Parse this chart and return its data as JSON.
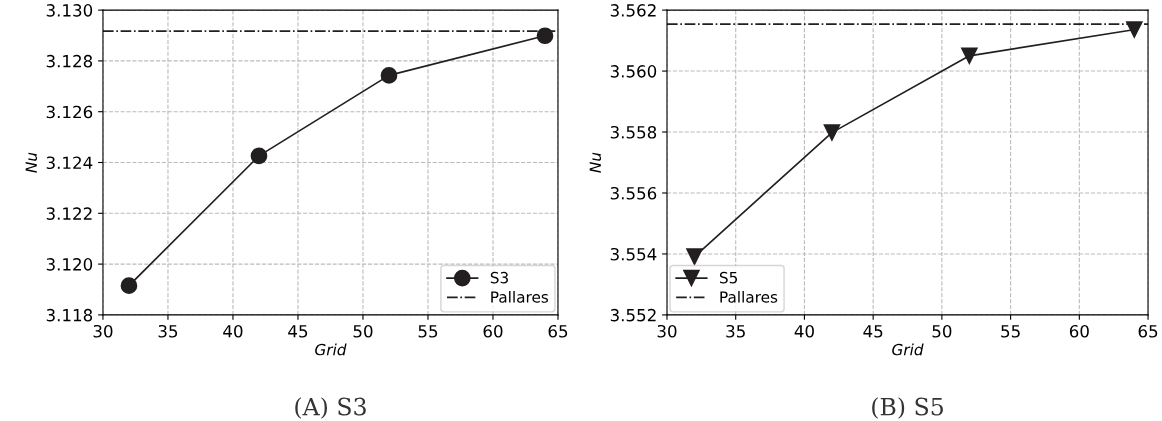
{
  "chart_data": [
    {
      "type": "line",
      "title": "(A) S3",
      "xlabel": "Grid",
      "ylabel": "Nu",
      "x": [
        32,
        42,
        52,
        64
      ],
      "series": [
        {
          "name": "S3",
          "color": "#231f20",
          "values": [
            3.11915,
            3.12426,
            3.12743,
            3.12899
          ]
        }
      ],
      "marker": "circle",
      "line_style": "solid",
      "ref_lines": [
        {
          "axis": "y",
          "value": 3.12917,
          "label": "Pallares",
          "color": "#231f20",
          "line_style": "dashdot"
        }
      ],
      "xlim": [
        30,
        65
      ],
      "xticks": [
        30,
        35,
        40,
        45,
        50,
        55,
        60,
        65
      ],
      "ylim": [
        3.118,
        3.13
      ],
      "yticks": [
        {
          "value": 3.118,
          "label": "3.118"
        },
        {
          "value": 3.12,
          "label": "3.120"
        },
        {
          "value": 3.122,
          "label": "3.122"
        },
        {
          "value": 3.124,
          "label": "3.124"
        },
        {
          "value": 3.126,
          "label": "3.126"
        },
        {
          "value": 3.128,
          "label": "3.128"
        },
        {
          "value": 3.13,
          "label": "3.130"
        }
      ],
      "grid": true,
      "legend": "bottom right"
    },
    {
      "type": "line",
      "title": "(B) S5",
      "xlabel": "Grid",
      "ylabel": "Nu",
      "x": [
        32,
        42,
        52,
        64
      ],
      "series": [
        {
          "name": "S5",
          "color": "#231f20",
          "values": [
            3.55391,
            3.55798,
            3.5605,
            3.56136
          ]
        }
      ],
      "marker": "triangle",
      "line_style": "solid",
      "ref_lines": [
        {
          "axis": "y",
          "value": 3.56154,
          "label": "Pallares",
          "color": "#231f20",
          "line_style": "dashdot"
        }
      ],
      "xlim": [
        30,
        65
      ],
      "xticks": [
        30,
        35,
        40,
        45,
        50,
        55,
        60,
        65
      ],
      "ylim": [
        3.552,
        3.562
      ],
      "yticks": [
        {
          "value": 3.552,
          "label": "3.552"
        },
        {
          "value": 3.554,
          "label": "3.554"
        },
        {
          "value": 3.556,
          "label": "3.556"
        },
        {
          "value": 3.558,
          "label": "3.558"
        },
        {
          "value": 3.56,
          "label": "3.560"
        },
        {
          "value": 3.562,
          "label": "3.562"
        }
      ],
      "grid": true,
      "legend": "bottom left"
    }
  ]
}
